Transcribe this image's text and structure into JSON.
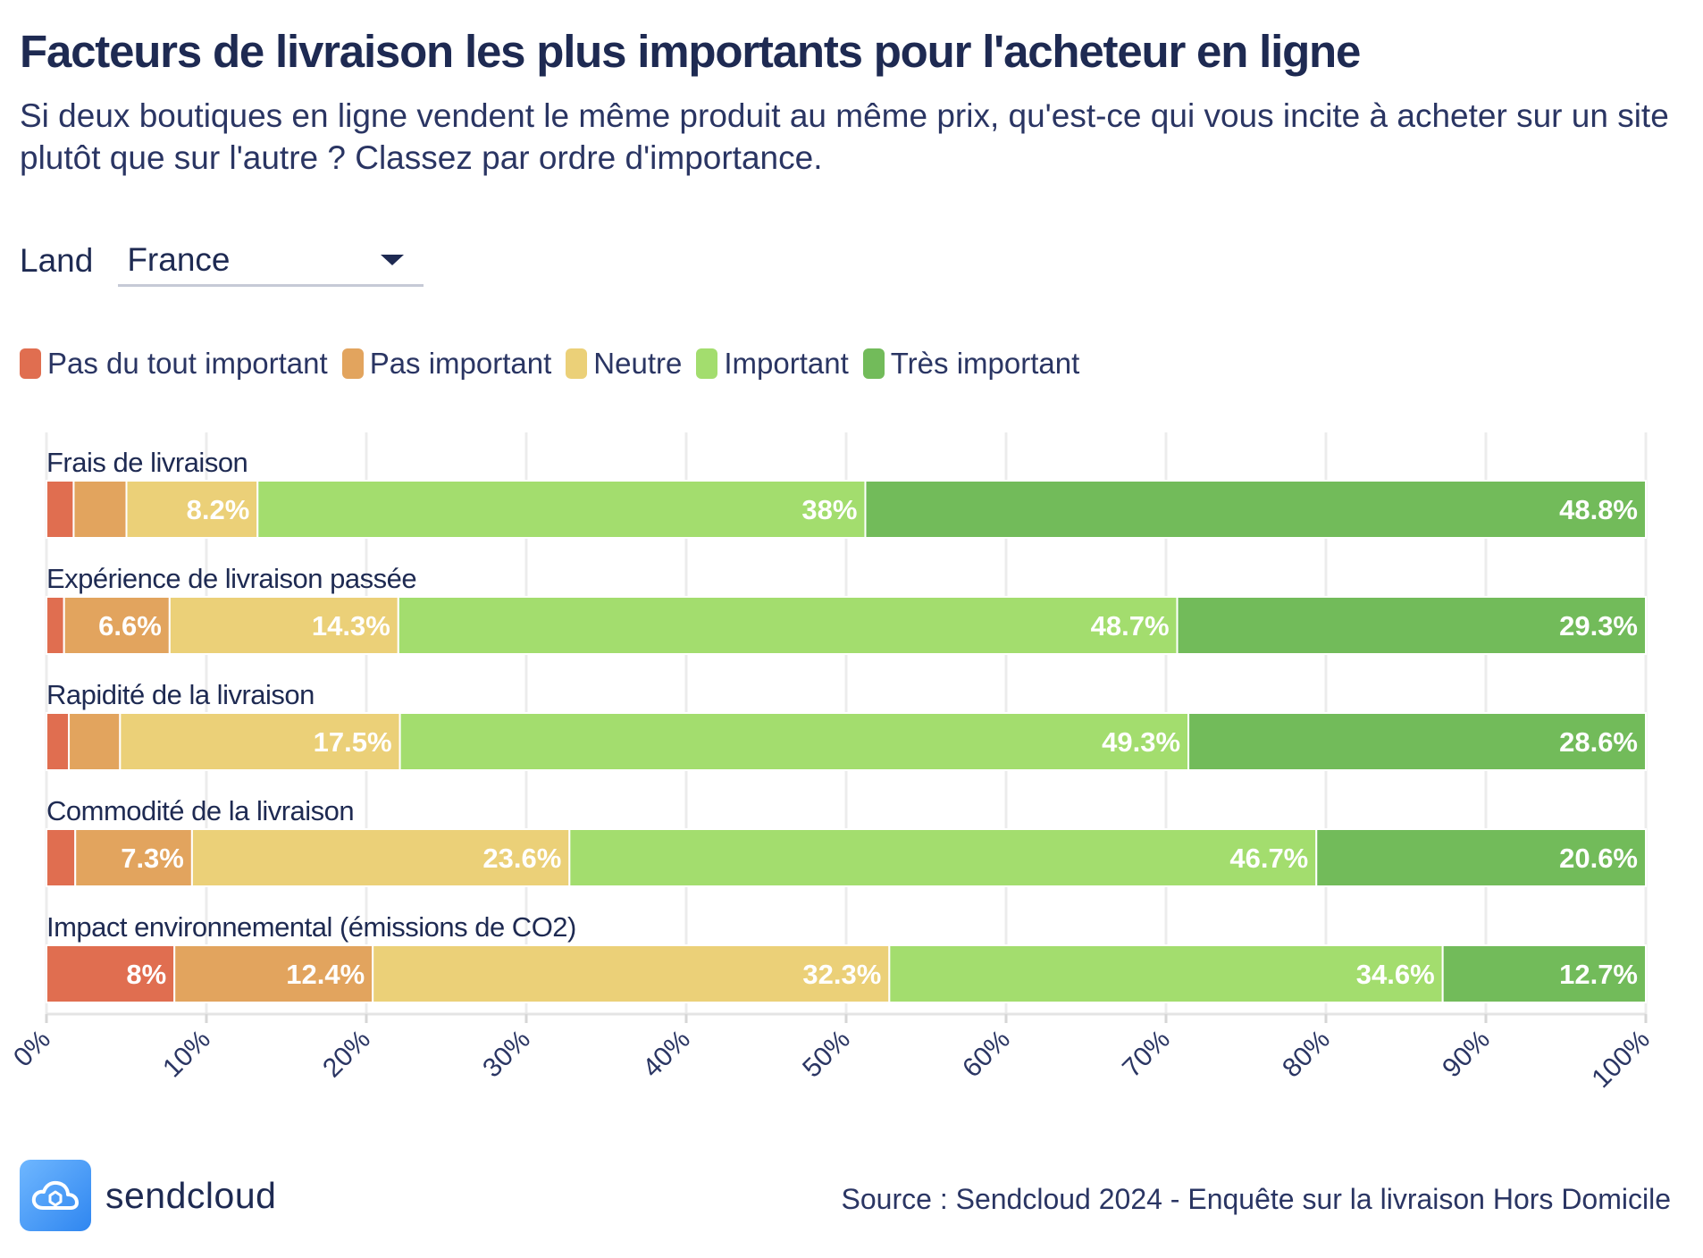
{
  "title": "Facteurs de livraison les plus importants pour l'acheteur en ligne",
  "subtitle": "Si deux boutiques en ligne vendent le même produit au même prix, qu'est-ce qui vous incite à acheter sur un site plutôt que sur l'autre ? Classez par ordre d'importance.",
  "filter": {
    "label": "Land",
    "selected": "France"
  },
  "source": "Source : Sendcloud 2024 - Enquête sur la livraison Hors Domicile",
  "brand": {
    "name": "sendcloud",
    "icon": "cloud-icon"
  },
  "chart_data": {
    "type": "bar",
    "orientation": "horizontal",
    "stacked": true,
    "percent_axis": true,
    "xlim": [
      0,
      100
    ],
    "xticks": [
      "0%",
      "10%",
      "20%",
      "30%",
      "40%",
      "50%",
      "60%",
      "70%",
      "80%",
      "90%",
      "100%"
    ],
    "grid": true,
    "legend_position": "top-left",
    "categories": [
      "Frais de livraison",
      "Expérience de livraison passée",
      "Rapidité de la livraison",
      "Commodité de la livraison",
      "Impact environnemental (émissions de CO2)"
    ],
    "series": [
      {
        "name": "Pas du tout important",
        "color": "#e06e50",
        "values": [
          1.7,
          1.1,
          1.4,
          1.8,
          8
        ]
      },
      {
        "name": "Pas important",
        "color": "#e2a45e",
        "values": [
          3.3,
          6.6,
          3.2,
          7.3,
          12.4
        ]
      },
      {
        "name": "Neutre",
        "color": "#ebd078",
        "values": [
          8.2,
          14.3,
          17.5,
          23.6,
          32.3
        ]
      },
      {
        "name": "Important",
        "color": "#a3dd6e",
        "values": [
          38,
          48.7,
          49.3,
          46.7,
          34.6
        ]
      },
      {
        "name": "Très important",
        "color": "#72bb5a",
        "values": [
          48.8,
          29.3,
          28.6,
          20.6,
          12.7
        ]
      }
    ],
    "data_labels": [
      [
        "",
        "",
        "8.2%",
        "38%",
        "48.8%"
      ],
      [
        "",
        "6.6%",
        "14.3%",
        "48.7%",
        "29.3%"
      ],
      [
        "",
        "",
        "17.5%",
        "49.3%",
        "28.6%"
      ],
      [
        "",
        "7.3%",
        "23.6%",
        "46.7%",
        "20.6%"
      ],
      [
        "8%",
        "12.4%",
        "32.3%",
        "34.6%",
        "12.7%"
      ]
    ]
  }
}
